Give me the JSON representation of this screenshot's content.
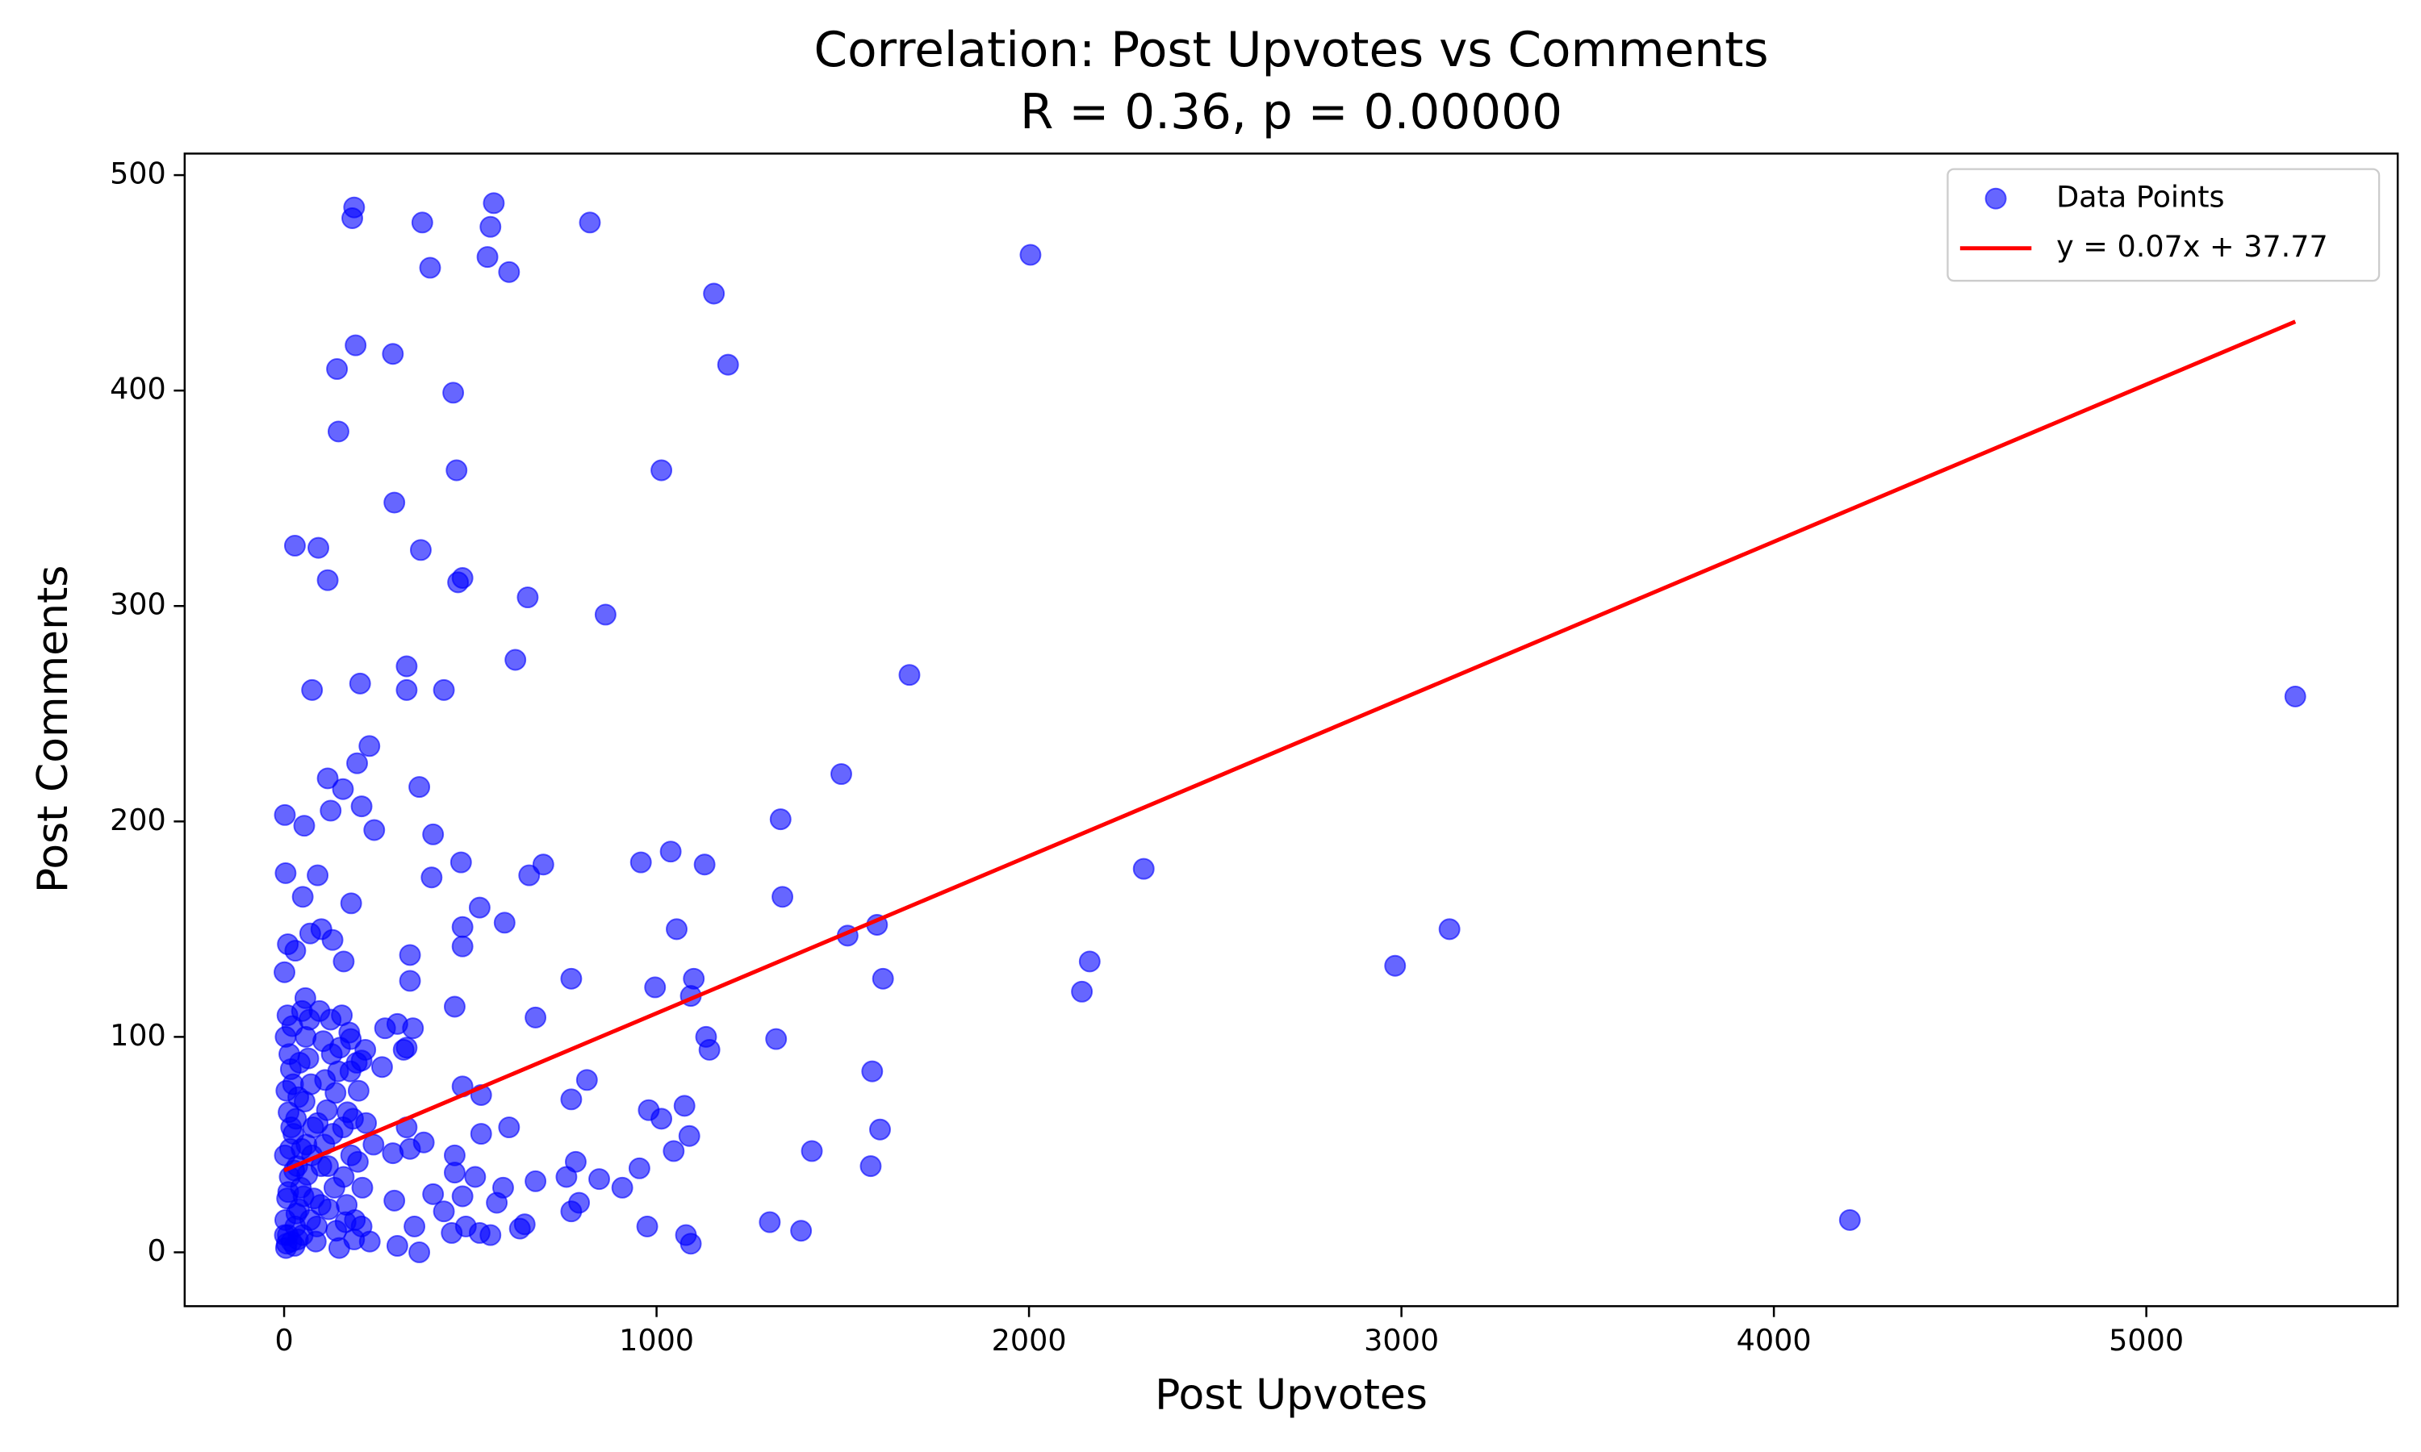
{
  "chart_data": {
    "type": "scatter",
    "title": "Correlation: Post Upvotes vs Comments",
    "subtitle": "R = 0.36, p = 0.00000",
    "x_label": "Post Upvotes",
    "y_label": "Post Comments",
    "xlim": [
      -267,
      5675
    ],
    "ylim": [
      -25,
      510
    ],
    "xticks": [
      0,
      1000,
      2000,
      3000,
      4000,
      5000
    ],
    "yticks": [
      0,
      100,
      200,
      300,
      400,
      500
    ],
    "grid": false,
    "legend": "upper right",
    "series": [
      {
        "name": "Data Points",
        "type": "scatter",
        "color": "blue",
        "x": [
          188,
          183,
          371,
          563,
          554,
          821,
          392,
          546,
          604,
          2004,
          1154,
          192,
          292,
          142,
          1192,
          454,
          146,
          463,
          1013,
          296,
          29,
          92,
          367,
          117,
          479,
          467,
          654,
          863,
          329,
          621,
          1679,
          5400,
          75,
          204,
          329,
          429,
          229,
          196,
          363,
          1496,
          1333,
          2,
          117,
          158,
          208,
          54,
          125,
          400,
          242,
          475,
          696,
          1038,
          958,
          1129,
          2308,
          658,
          4,
          396,
          1338,
          525,
          1054,
          479,
          592,
          1513,
          1592,
          3129,
          2983,
          2163,
          2142,
          479,
          338,
          1100,
          996,
          1092,
          771,
          1608,
          338,
          675,
          1133,
          1142,
          1321,
          458,
          1579,
          813,
          771,
          479,
          1075,
          979,
          1013,
          604,
          1600,
          529,
          1417,
          1046,
          1088,
          1575,
          954,
          675,
          908,
          758,
          783,
          792,
          771,
          846,
          1304,
          1388,
          975,
          1079,
          1092,
          4204,
          633,
          646,
          525,
          554,
          479,
          400,
          458,
          513,
          588,
          571,
          488,
          363,
          450,
          296,
          304,
          350,
          429,
          292,
          338,
          329,
          375,
          458,
          529,
          263,
          321,
          271,
          304,
          329,
          208,
          179,
          346,
          5,
          10,
          3,
          20,
          8,
          15,
          2,
          30,
          25,
          12,
          40,
          6,
          18,
          35,
          50,
          45,
          60,
          55,
          70,
          65,
          80,
          90,
          85,
          100,
          110,
          120,
          130,
          140,
          150,
          160,
          170,
          180,
          190,
          200,
          210,
          220,
          230,
          240,
          4,
          9,
          14,
          22,
          28,
          33,
          38,
          48,
          58,
          68,
          75,
          95,
          105,
          115,
          125,
          135,
          145,
          155,
          165,
          175,
          185,
          195,
          2,
          7,
          11,
          16,
          19,
          24,
          27,
          32,
          37,
          42,
          47,
          52,
          57,
          62,
          72,
          78,
          88,
          98,
          108,
          118,
          128,
          138,
          148,
          158,
          168,
          178,
          188,
          198,
          208,
          218,
          1,
          10,
          30,
          50,
          70,
          90,
          100,
          130,
          160,
          180
        ],
        "y": [
          485,
          480,
          478,
          487,
          476,
          478,
          457,
          462,
          455,
          463,
          445,
          421,
          417,
          410,
          412,
          399,
          381,
          363,
          363,
          348,
          328,
          327,
          326,
          312,
          313,
          311,
          304,
          296,
          272,
          275,
          268,
          258,
          261,
          264,
          261,
          261,
          235,
          227,
          216,
          222,
          201,
          203,
          220,
          215,
          207,
          198,
          205,
          194,
          196,
          181,
          180,
          186,
          181,
          180,
          178,
          175,
          176,
          174,
          165,
          160,
          150,
          151,
          153,
          147,
          152,
          150,
          133,
          135,
          121,
          142,
          138,
          127,
          123,
          119,
          127,
          127,
          126,
          109,
          100,
          94,
          99,
          114,
          84,
          80,
          71,
          77,
          68,
          66,
          62,
          58,
          57,
          55,
          47,
          47,
          54,
          40,
          39,
          33,
          30,
          35,
          42,
          23,
          19,
          34,
          14,
          10,
          12,
          8,
          4,
          15,
          11,
          13,
          9,
          8,
          26,
          27,
          37,
          35,
          30,
          23,
          12,
          0,
          9,
          24,
          3,
          12,
          19,
          46,
          48,
          58,
          51,
          45,
          73,
          86,
          94,
          104,
          106,
          95,
          89,
          99,
          104,
          2,
          8,
          15,
          5,
          25,
          35,
          45,
          12,
          55,
          65,
          20,
          75,
          85,
          40,
          8,
          30,
          50,
          70,
          15,
          90,
          25,
          60,
          5,
          40,
          80,
          20,
          55,
          10,
          95,
          35,
          65,
          45,
          15,
          75,
          30,
          60,
          5,
          50,
          100,
          110,
          92,
          105,
          3,
          18,
          72,
          112,
          100,
          108,
          45,
          112,
          98,
          66,
          108,
          30,
          84,
          110,
          14,
          102,
          62,
          88,
          8,
          4,
          28,
          48,
          58,
          78,
          38,
          62,
          6,
          88,
          48,
          26,
          118,
          36,
          78,
          58,
          12,
          22,
          50,
          40,
          92,
          74,
          2,
          58,
          22,
          84,
          6,
          42,
          12,
          94,
          130,
          143,
          140,
          165,
          148,
          175,
          150,
          145,
          135,
          162
        ]
      },
      {
        "name": "y = 0.07x + 37.77",
        "type": "line",
        "color": "red",
        "x": [
          0,
          5400
        ],
        "y": [
          38,
          432
        ]
      }
    ]
  }
}
